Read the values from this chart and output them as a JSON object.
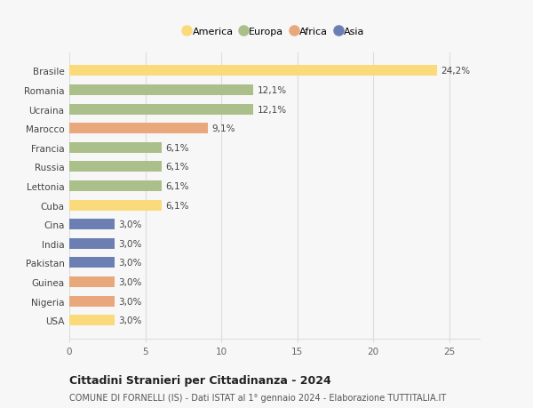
{
  "countries": [
    "Brasile",
    "Romania",
    "Ucraina",
    "Marocco",
    "Francia",
    "Russia",
    "Lettonia",
    "Cuba",
    "Cina",
    "India",
    "Pakistan",
    "Guinea",
    "Nigeria",
    "USA"
  ],
  "values": [
    24.2,
    12.1,
    12.1,
    9.1,
    6.1,
    6.1,
    6.1,
    6.1,
    3.0,
    3.0,
    3.0,
    3.0,
    3.0,
    3.0
  ],
  "labels": [
    "24,2%",
    "12,1%",
    "12,1%",
    "9,1%",
    "6,1%",
    "6,1%",
    "6,1%",
    "6,1%",
    "3,0%",
    "3,0%",
    "3,0%",
    "3,0%",
    "3,0%",
    "3,0%"
  ],
  "continents": [
    "America",
    "Europa",
    "Europa",
    "Africa",
    "Europa",
    "Europa",
    "Europa",
    "America",
    "Asia",
    "Asia",
    "Asia",
    "Africa",
    "Africa",
    "America"
  ],
  "colors": {
    "America": "#FADA7A",
    "Europa": "#AABF8A",
    "Africa": "#E8A87C",
    "Asia": "#6B7FB3"
  },
  "legend_order": [
    "America",
    "Europa",
    "Africa",
    "Asia"
  ],
  "xlim": [
    0,
    27
  ],
  "xticks": [
    0,
    5,
    10,
    15,
    20,
    25
  ],
  "title": "Cittadini Stranieri per Cittadinanza - 2024",
  "subtitle": "COMUNE DI FORNELLI (IS) - Dati ISTAT al 1° gennaio 2024 - Elaborazione TUTTITALIA.IT",
  "background_color": "#f7f7f7",
  "bar_height": 0.55,
  "grid_color": "#dddddd",
  "label_fontsize": 7.5,
  "ytick_fontsize": 7.5,
  "xtick_fontsize": 7.5,
  "title_fontsize": 9,
  "subtitle_fontsize": 7,
  "legend_fontsize": 8
}
